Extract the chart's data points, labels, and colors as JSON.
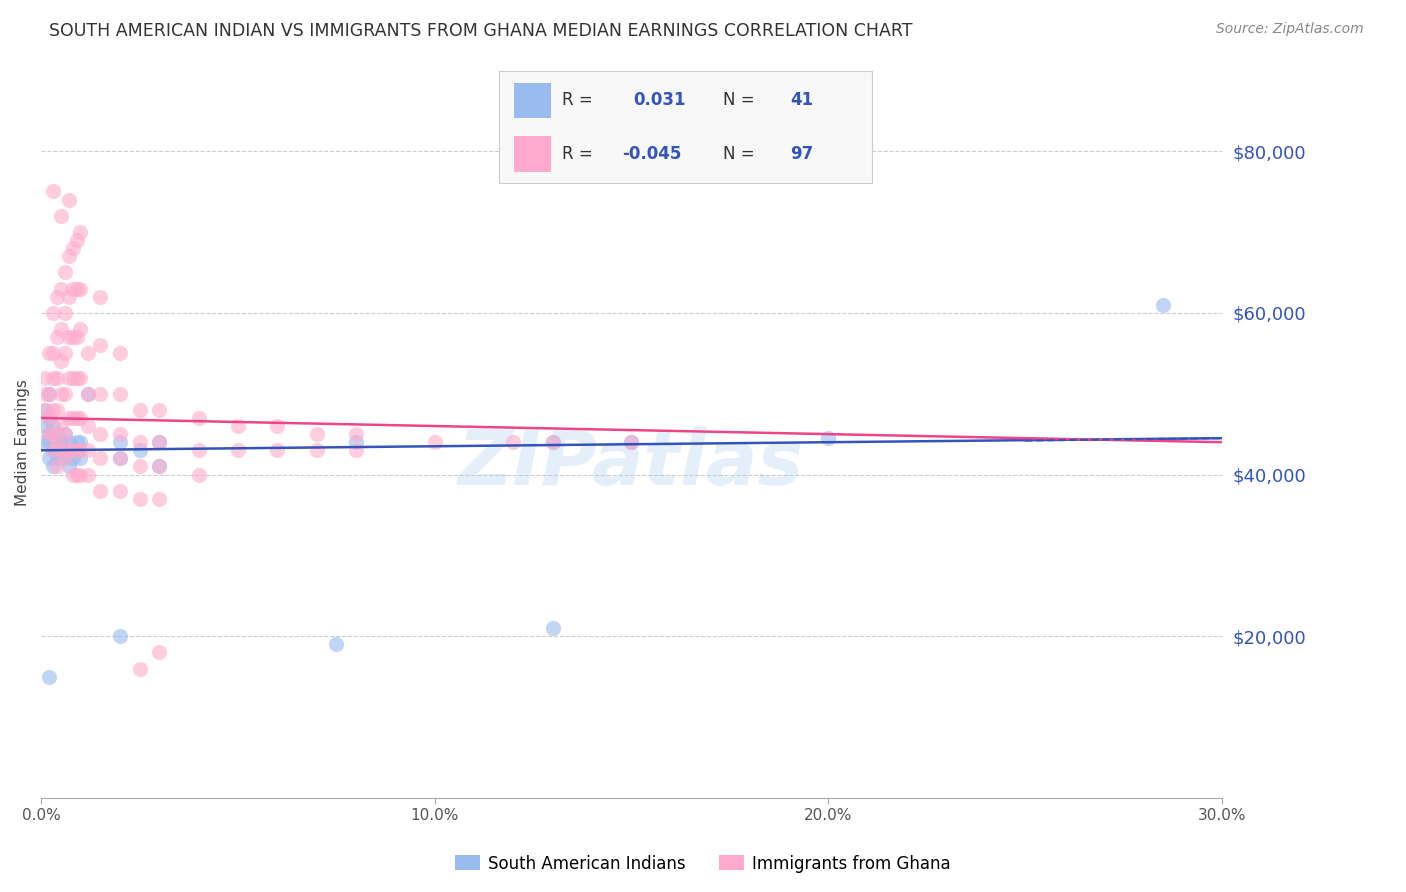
{
  "title": "SOUTH AMERICAN INDIAN VS IMMIGRANTS FROM GHANA MEDIAN EARNINGS CORRELATION CHART",
  "source": "Source: ZipAtlas.com",
  "ylabel": "Median Earnings",
  "ytick_labels": [
    "$20,000",
    "$40,000",
    "$60,000",
    "$80,000"
  ],
  "ytick_values": [
    20000,
    40000,
    60000,
    80000
  ],
  "legend_label1": "South American Indians",
  "legend_label2": "Immigrants from Ghana",
  "legend_R1": "0.031",
  "legend_N1": "41",
  "legend_R2": "-0.045",
  "legend_N2": "97",
  "color_blue": "#99BBEE",
  "color_pink": "#FFAACC",
  "color_blue_line": "#3355BB",
  "color_pink_line": "#EE4488",
  "color_blue_text": "#3355BB",
  "watermark": "ZIPatlas",
  "blue_scatter": [
    [
      0.001,
      44000
    ],
    [
      0.001,
      46000
    ],
    [
      0.001,
      48000
    ],
    [
      0.002,
      50000
    ],
    [
      0.002,
      47000
    ],
    [
      0.002,
      44000
    ],
    [
      0.002,
      42000
    ],
    [
      0.002,
      45000
    ],
    [
      0.003,
      46000
    ],
    [
      0.003,
      43000
    ],
    [
      0.003,
      44000
    ],
    [
      0.003,
      41000
    ],
    [
      0.004,
      45000
    ],
    [
      0.004,
      43000
    ],
    [
      0.004,
      42000
    ],
    [
      0.004,
      44000
    ],
    [
      0.005,
      44000
    ],
    [
      0.005,
      42000
    ],
    [
      0.005,
      43000
    ],
    [
      0.006,
      43000
    ],
    [
      0.006,
      45000
    ],
    [
      0.006,
      42000
    ],
    [
      0.007,
      44000
    ],
    [
      0.007,
      41000
    ],
    [
      0.008,
      43000
    ],
    [
      0.008,
      42000
    ],
    [
      0.009,
      44000
    ],
    [
      0.009,
      43000
    ],
    [
      0.01,
      44000
    ],
    [
      0.01,
      42000
    ],
    [
      0.012,
      50000
    ],
    [
      0.02,
      44000
    ],
    [
      0.02,
      42000
    ],
    [
      0.025,
      43000
    ],
    [
      0.03,
      44000
    ],
    [
      0.03,
      41000
    ],
    [
      0.08,
      44000
    ],
    [
      0.13,
      44000
    ],
    [
      0.15,
      44000
    ],
    [
      0.2,
      44500
    ],
    [
      0.285,
      61000
    ],
    [
      0.002,
      15000
    ],
    [
      0.02,
      20000
    ],
    [
      0.075,
      19000
    ],
    [
      0.13,
      21000
    ]
  ],
  "pink_scatter": [
    [
      0.001,
      50000
    ],
    [
      0.001,
      48000
    ],
    [
      0.001,
      52000
    ],
    [
      0.002,
      55000
    ],
    [
      0.002,
      50000
    ],
    [
      0.002,
      47000
    ],
    [
      0.002,
      45000
    ],
    [
      0.003,
      60000
    ],
    [
      0.003,
      55000
    ],
    [
      0.003,
      52000
    ],
    [
      0.003,
      48000
    ],
    [
      0.003,
      45000
    ],
    [
      0.003,
      43000
    ],
    [
      0.004,
      62000
    ],
    [
      0.004,
      57000
    ],
    [
      0.004,
      52000
    ],
    [
      0.004,
      48000
    ],
    [
      0.004,
      44000
    ],
    [
      0.004,
      41000
    ],
    [
      0.005,
      63000
    ],
    [
      0.005,
      58000
    ],
    [
      0.005,
      54000
    ],
    [
      0.005,
      50000
    ],
    [
      0.005,
      46000
    ],
    [
      0.005,
      43000
    ],
    [
      0.006,
      65000
    ],
    [
      0.006,
      60000
    ],
    [
      0.006,
      55000
    ],
    [
      0.006,
      50000
    ],
    [
      0.006,
      45000
    ],
    [
      0.006,
      42000
    ],
    [
      0.007,
      67000
    ],
    [
      0.007,
      62000
    ],
    [
      0.007,
      57000
    ],
    [
      0.007,
      52000
    ],
    [
      0.007,
      47000
    ],
    [
      0.007,
      43000
    ],
    [
      0.008,
      68000
    ],
    [
      0.008,
      63000
    ],
    [
      0.008,
      57000
    ],
    [
      0.008,
      52000
    ],
    [
      0.008,
      47000
    ],
    [
      0.008,
      43000
    ],
    [
      0.008,
      40000
    ],
    [
      0.009,
      69000
    ],
    [
      0.009,
      63000
    ],
    [
      0.009,
      57000
    ],
    [
      0.009,
      52000
    ],
    [
      0.009,
      47000
    ],
    [
      0.009,
      43000
    ],
    [
      0.009,
      40000
    ],
    [
      0.01,
      70000
    ],
    [
      0.01,
      63000
    ],
    [
      0.01,
      58000
    ],
    [
      0.01,
      52000
    ],
    [
      0.01,
      47000
    ],
    [
      0.01,
      43000
    ],
    [
      0.01,
      40000
    ],
    [
      0.012,
      55000
    ],
    [
      0.012,
      50000
    ],
    [
      0.012,
      46000
    ],
    [
      0.012,
      43000
    ],
    [
      0.012,
      40000
    ],
    [
      0.015,
      62000
    ],
    [
      0.015,
      56000
    ],
    [
      0.015,
      50000
    ],
    [
      0.015,
      45000
    ],
    [
      0.015,
      42000
    ],
    [
      0.015,
      38000
    ],
    [
      0.02,
      55000
    ],
    [
      0.02,
      50000
    ],
    [
      0.02,
      45000
    ],
    [
      0.02,
      42000
    ],
    [
      0.02,
      38000
    ],
    [
      0.025,
      48000
    ],
    [
      0.025,
      44000
    ],
    [
      0.025,
      41000
    ],
    [
      0.025,
      37000
    ],
    [
      0.03,
      48000
    ],
    [
      0.03,
      44000
    ],
    [
      0.03,
      41000
    ],
    [
      0.03,
      37000
    ],
    [
      0.04,
      47000
    ],
    [
      0.04,
      43000
    ],
    [
      0.04,
      40000
    ],
    [
      0.05,
      46000
    ],
    [
      0.05,
      43000
    ],
    [
      0.06,
      46000
    ],
    [
      0.06,
      43000
    ],
    [
      0.07,
      45000
    ],
    [
      0.07,
      43000
    ],
    [
      0.08,
      45000
    ],
    [
      0.08,
      43000
    ],
    [
      0.1,
      44000
    ],
    [
      0.12,
      44000
    ],
    [
      0.13,
      44000
    ],
    [
      0.15,
      44000
    ],
    [
      0.003,
      75000
    ],
    [
      0.005,
      72000
    ],
    [
      0.007,
      74000
    ],
    [
      0.025,
      16000
    ],
    [
      0.03,
      18000
    ]
  ],
  "xmin": 0.0,
  "xmax": 0.3,
  "ymin": 0,
  "ymax": 88000,
  "background_color": "#FFFFFF",
  "grid_color": "#CCCCCC"
}
